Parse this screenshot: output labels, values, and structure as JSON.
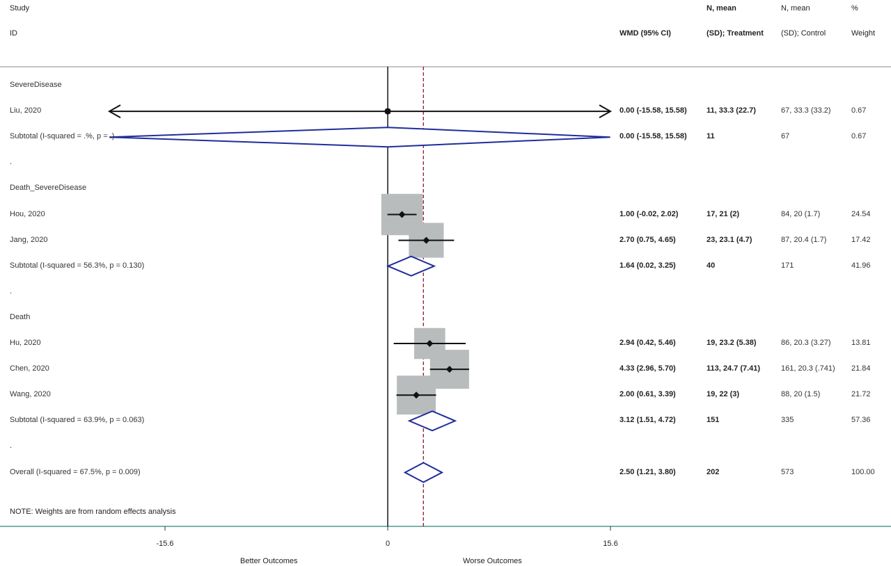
{
  "header": {
    "study": "Study",
    "id": "ID",
    "wmd": "WMD (95% CI)",
    "nt1": "N, mean",
    "nt2": "(SD); Treatment",
    "nc1": "N, mean",
    "nc2": "(SD); Control",
    "w1": "%",
    "w2": "Weight"
  },
  "note": "NOTE: Weights are from random effects analysis",
  "axis": {
    "ticks": [
      {
        "value": -15.6,
        "label": "-15.6"
      },
      {
        "value": 0,
        "label": "0"
      },
      {
        "value": 15.6,
        "label": "15.6"
      }
    ],
    "left_caption": "Better Outcomes",
    "right_caption": "Worse Outcomes"
  },
  "colors": {
    "diamond": "#1f2d9b",
    "box": "#b8bcbc",
    "overall_line": "#8b1a2b",
    "axis_line": "#4d9a8e"
  },
  "chart_data": {
    "type": "forest",
    "xlim": [
      -15.6,
      15.6
    ],
    "null_value": 0,
    "overall_estimate": 2.5,
    "rows": [
      {
        "kind": "group",
        "label": "SevereDisease"
      },
      {
        "kind": "study",
        "label": "Liu, 2020",
        "est": 0.0,
        "lo": -15.58,
        "hi": 15.58,
        "clipped": true,
        "weight": 0.67,
        "est_text": "0.00 (-15.58, 15.58)",
        "nt": "11, 33.3 (22.7)",
        "nc": "67, 33.3 (33.2)",
        "w": "0.67"
      },
      {
        "kind": "subtotal",
        "label": "Subtotal  (I-squared = .%, p = .)",
        "est": 0.0,
        "lo": -15.58,
        "hi": 15.58,
        "est_text": "0.00 (-15.58, 15.58)",
        "nt": "11",
        "nc": "67",
        "w": "0.67"
      },
      {
        "kind": "spacer",
        "label": "."
      },
      {
        "kind": "group",
        "label": "Death_SevereDisease"
      },
      {
        "kind": "study",
        "label": "Hou, 2020",
        "est": 1.0,
        "lo": -0.02,
        "hi": 2.02,
        "weight": 24.54,
        "est_text": "1.00 (-0.02, 2.02)",
        "nt": "17, 21 (2)",
        "nc": "84, 20 (1.7)",
        "w": "24.54"
      },
      {
        "kind": "study",
        "label": "Jang, 2020",
        "est": 2.7,
        "lo": 0.75,
        "hi": 4.65,
        "weight": 17.42,
        "est_text": "2.70 (0.75, 4.65)",
        "nt": "23, 23.1 (4.7)",
        "nc": "87, 20.4 (1.7)",
        "w": "17.42"
      },
      {
        "kind": "subtotal",
        "label": "Subtotal  (I-squared = 56.3%, p = 0.130)",
        "est": 1.64,
        "lo": 0.02,
        "hi": 3.25,
        "est_text": "1.64 (0.02, 3.25)",
        "nt": "40",
        "nc": "171",
        "w": "41.96"
      },
      {
        "kind": "spacer",
        "label": "."
      },
      {
        "kind": "group",
        "label": "Death"
      },
      {
        "kind": "study",
        "label": "Hu, 2020",
        "est": 2.94,
        "lo": 0.42,
        "hi": 5.46,
        "weight": 13.81,
        "est_text": "2.94 (0.42, 5.46)",
        "nt": "19, 23.2 (5.38)",
        "nc": "86, 20.3 (3.27)",
        "w": "13.81"
      },
      {
        "kind": "study",
        "label": "Chen, 2020",
        "est": 4.33,
        "lo": 2.96,
        "hi": 5.7,
        "weight": 21.84,
        "est_text": "4.33 (2.96, 5.70)",
        "nt": "113, 24.7 (7.41)",
        "nc": "161, 20.3 (.741)",
        "w": "21.84"
      },
      {
        "kind": "study",
        "label": "Wang, 2020",
        "est": 2.0,
        "lo": 0.61,
        "hi": 3.39,
        "weight": 21.72,
        "est_text": "2.00 (0.61, 3.39)",
        "nt": "19, 22 (3)",
        "nc": "88, 20 (1.5)",
        "w": "21.72"
      },
      {
        "kind": "subtotal",
        "label": "Subtotal  (I-squared = 63.9%, p = 0.063)",
        "est": 3.12,
        "lo": 1.51,
        "hi": 4.72,
        "est_text": "3.12 (1.51, 4.72)",
        "nt": "151",
        "nc": "335",
        "w": "57.36"
      },
      {
        "kind": "spacer",
        "label": "."
      },
      {
        "kind": "overall",
        "label": "Overall  (I-squared = 67.5%, p = 0.009)",
        "est": 2.5,
        "lo": 1.21,
        "hi": 3.8,
        "est_text": "2.50 (1.21, 3.80)",
        "nt": "202",
        "nc": "573",
        "w": "100.00"
      }
    ]
  }
}
